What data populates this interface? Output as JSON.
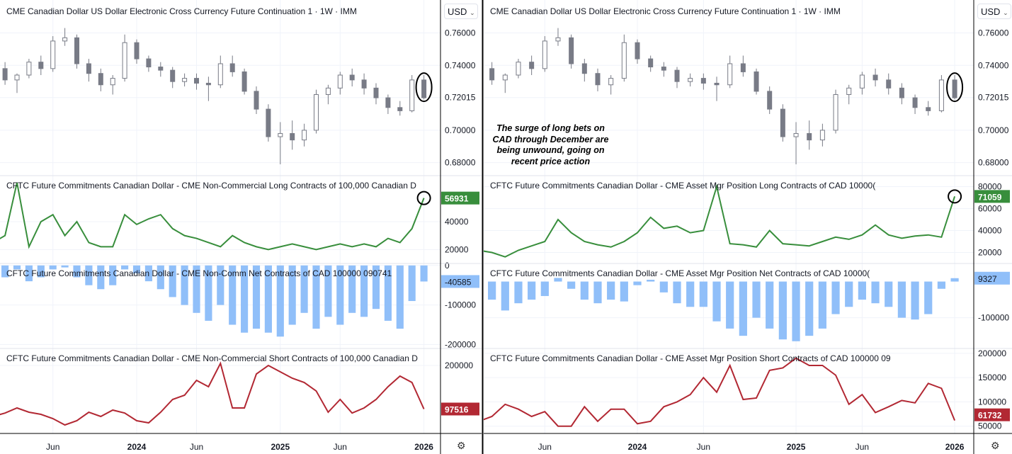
{
  "currency_selector": {
    "left": "USD",
    "right": "USD"
  },
  "annotation_text": "The surge of long bets on CAD through December are being unwound, going on recent price action",
  "colors": {
    "candle": "#787b86",
    "long_line": "#388e3c",
    "net_bar": "#90bff9",
    "short_line": "#b22833",
    "grid": "#f0f3fa",
    "divider": "#000000"
  },
  "icons": {
    "settings": "gear-icon",
    "dropdown": "chevron-down-icon"
  },
  "chart_data": [
    {
      "panel": "left",
      "time_axis": {
        "labels": [
          "Jun",
          "2024",
          "Jun",
          "2025",
          "Jun",
          "2026"
        ],
        "dates": [
          "2023-06",
          "2024-01",
          "2024-06",
          "2025-01",
          "2025-06",
          "2026-01"
        ]
      },
      "months": [
        "2023-01",
        "2023-02",
        "2023-03",
        "2023-04",
        "2023-05",
        "2023-06",
        "2023-07",
        "2023-08",
        "2023-09",
        "2023-10",
        "2023-11",
        "2023-12",
        "2024-01",
        "2024-02",
        "2024-03",
        "2024-04",
        "2024-05",
        "2024-06",
        "2024-07",
        "2024-08",
        "2024-09",
        "2024-10",
        "2024-11",
        "2024-12",
        "2025-01",
        "2025-02",
        "2025-03",
        "2025-04",
        "2025-05",
        "2025-06",
        "2025-07",
        "2025-08",
        "2025-09",
        "2025-10",
        "2025-11",
        "2025-12",
        "2026-01"
      ],
      "panes": [
        {
          "type": "candlestick",
          "title": "CME Canadian Dollar US Dollar Electronic Cross Currency Future Continuation 1 · 1W · IMM",
          "ylim": [
            0.672,
            0.765
          ],
          "ticks": [
            "0.76000",
            "0.74000",
            "0.72015",
            "0.70000",
            "0.68000"
          ],
          "tick_values": [
            0.76,
            0.74,
            0.72015,
            0.7,
            0.68
          ],
          "ohlc": [
            [
              0.741,
              0.745,
              0.735,
              0.738
            ],
            [
              0.738,
              0.742,
              0.728,
              0.731
            ],
            [
              0.731,
              0.735,
              0.723,
              0.734
            ],
            [
              0.734,
              0.744,
              0.732,
              0.742
            ],
            [
              0.742,
              0.746,
              0.734,
              0.738
            ],
            [
              0.738,
              0.758,
              0.736,
              0.755
            ],
            [
              0.755,
              0.763,
              0.752,
              0.757
            ],
            [
              0.757,
              0.759,
              0.738,
              0.741
            ],
            [
              0.741,
              0.744,
              0.73,
              0.735
            ],
            [
              0.735,
              0.738,
              0.724,
              0.728
            ],
            [
              0.728,
              0.734,
              0.722,
              0.732
            ],
            [
              0.732,
              0.759,
              0.73,
              0.754
            ],
            [
              0.754,
              0.756,
              0.741,
              0.744
            ],
            [
              0.744,
              0.746,
              0.736,
              0.739
            ],
            [
              0.739,
              0.742,
              0.733,
              0.737
            ],
            [
              0.737,
              0.739,
              0.726,
              0.73
            ],
            [
              0.73,
              0.735,
              0.727,
              0.732
            ],
            [
              0.732,
              0.735,
              0.725,
              0.729
            ],
            [
              0.729,
              0.733,
              0.718,
              0.728
            ],
            [
              0.728,
              0.746,
              0.726,
              0.741
            ],
            [
              0.741,
              0.746,
              0.733,
              0.736
            ],
            [
              0.736,
              0.738,
              0.722,
              0.724
            ],
            [
              0.724,
              0.727,
              0.71,
              0.713
            ],
            [
              0.713,
              0.716,
              0.693,
              0.696
            ],
            [
              0.696,
              0.705,
              0.679,
              0.698
            ],
            [
              0.698,
              0.706,
              0.688,
              0.694
            ],
            [
              0.694,
              0.704,
              0.69,
              0.7
            ],
            [
              0.7,
              0.725,
              0.698,
              0.722
            ],
            [
              0.722,
              0.728,
              0.716,
              0.726
            ],
            [
              0.726,
              0.736,
              0.722,
              0.734
            ],
            [
              0.734,
              0.738,
              0.727,
              0.731
            ],
            [
              0.731,
              0.735,
              0.722,
              0.726
            ],
            [
              0.726,
              0.729,
              0.716,
              0.72
            ],
            [
              0.72,
              0.722,
              0.71,
              0.714
            ],
            [
              0.714,
              0.718,
              0.709,
              0.712
            ],
            [
              0.712,
              0.734,
              0.711,
              0.731
            ],
            [
              0.731,
              0.734,
              0.719,
              0.72
            ]
          ]
        },
        {
          "type": "line",
          "title": "CFTC Future Commitments Canadian Dollar - CME Non-Commercial Long Contracts of 100,000 Canadian D",
          "last_value": "56931",
          "ylim": [
            10000,
            73000
          ],
          "ticks": [
            "40000",
            "20000"
          ],
          "tick_values": [
            40000,
            20000
          ],
          "values": [
            25000,
            30000,
            68000,
            22000,
            40000,
            45000,
            30000,
            40000,
            25000,
            22000,
            22000,
            45000,
            38000,
            42000,
            45000,
            35000,
            30000,
            28000,
            25000,
            22000,
            30000,
            25000,
            22000,
            20000,
            22000,
            24000,
            22000,
            20000,
            22000,
            24000,
            22000,
            24000,
            22000,
            28000,
            25000,
            35000,
            56931
          ]
        },
        {
          "type": "bar",
          "title": "CFTC Future Commitments Canadian Dollar - CME Non-Comm Net Contracts of CAD 100000 090741",
          "last_value": "-40585",
          "ylim": [
            -210000,
            5000
          ],
          "ticks": [
            "0",
            "-100000",
            "-200000"
          ],
          "tick_values": [
            0,
            -100000,
            -200000
          ],
          "values": [
            -20000,
            -30000,
            -10000,
            -40000,
            -30000,
            -10000,
            -5000,
            -30000,
            -50000,
            -60000,
            -50000,
            -10000,
            -20000,
            -40000,
            -60000,
            -80000,
            -100000,
            -120000,
            -140000,
            -100000,
            -150000,
            -170000,
            -160000,
            -170000,
            -180000,
            -150000,
            -120000,
            -160000,
            -130000,
            -150000,
            -120000,
            -130000,
            -110000,
            -140000,
            -160000,
            -90000,
            -40585
          ]
        },
        {
          "type": "line",
          "title": "CFTC Future Commitments Canadian Dollar - CME Non-Commercial Short Contracts of 100,000 Canadian D",
          "last_value": "97516",
          "ylim": [
            40000,
            240000
          ],
          "ticks": [
            "200000"
          ],
          "tick_values": [
            200000
          ],
          "values": [
            80000,
            88000,
            100000,
            90000,
            85000,
            75000,
            60000,
            70000,
            90000,
            80000,
            95000,
            88000,
            70000,
            65000,
            90000,
            120000,
            130000,
            165000,
            150000,
            205000,
            100000,
            100000,
            180000,
            200000,
            185000,
            170000,
            160000,
            140000,
            90000,
            120000,
            88000,
            100000,
            120000,
            150000,
            175000,
            160000,
            97516
          ]
        }
      ]
    },
    {
      "panel": "right",
      "time_axis": {
        "labels": [
          "Jun",
          "2024",
          "Jun",
          "2025",
          "Jun",
          "2026"
        ],
        "dates": [
          "2023-06",
          "2024-01",
          "2024-06",
          "2025-01",
          "2025-06",
          "2026-01"
        ]
      },
      "months": [
        "2023-01",
        "2023-02",
        "2023-03",
        "2023-04",
        "2023-05",
        "2023-06",
        "2023-07",
        "2023-08",
        "2023-09",
        "2023-10",
        "2023-11",
        "2023-12",
        "2024-01",
        "2024-02",
        "2024-03",
        "2024-04",
        "2024-05",
        "2024-06",
        "2024-07",
        "2024-08",
        "2024-09",
        "2024-10",
        "2024-11",
        "2024-12",
        "2025-01",
        "2025-02",
        "2025-03",
        "2025-04",
        "2025-05",
        "2025-06",
        "2025-07",
        "2025-08",
        "2025-09",
        "2025-10",
        "2025-11",
        "2025-12",
        "2026-01"
      ],
      "panes": [
        {
          "type": "candlestick",
          "title": "CME Canadian Dollar US Dollar Electronic Cross Currency Future Continuation 1 · 1W · IMM",
          "ylim": [
            0.672,
            0.765
          ],
          "ticks": [
            "0.76000",
            "0.74000",
            "0.72015",
            "0.70000",
            "0.68000"
          ],
          "tick_values": [
            0.76,
            0.74,
            0.72015,
            0.7,
            0.68
          ],
          "ohlc": [
            [
              0.741,
              0.745,
              0.735,
              0.738
            ],
            [
              0.738,
              0.742,
              0.728,
              0.731
            ],
            [
              0.731,
              0.735,
              0.723,
              0.734
            ],
            [
              0.734,
              0.744,
              0.732,
              0.742
            ],
            [
              0.742,
              0.746,
              0.734,
              0.738
            ],
            [
              0.738,
              0.758,
              0.736,
              0.755
            ],
            [
              0.755,
              0.763,
              0.752,
              0.757
            ],
            [
              0.757,
              0.759,
              0.738,
              0.741
            ],
            [
              0.741,
              0.744,
              0.73,
              0.735
            ],
            [
              0.735,
              0.738,
              0.724,
              0.728
            ],
            [
              0.728,
              0.734,
              0.722,
              0.732
            ],
            [
              0.732,
              0.759,
              0.73,
              0.754
            ],
            [
              0.754,
              0.756,
              0.741,
              0.744
            ],
            [
              0.744,
              0.746,
              0.736,
              0.739
            ],
            [
              0.739,
              0.742,
              0.733,
              0.737
            ],
            [
              0.737,
              0.739,
              0.726,
              0.73
            ],
            [
              0.73,
              0.735,
              0.727,
              0.732
            ],
            [
              0.732,
              0.735,
              0.725,
              0.729
            ],
            [
              0.729,
              0.733,
              0.718,
              0.728
            ],
            [
              0.728,
              0.746,
              0.726,
              0.741
            ],
            [
              0.741,
              0.746,
              0.733,
              0.736
            ],
            [
              0.736,
              0.738,
              0.722,
              0.724
            ],
            [
              0.724,
              0.727,
              0.71,
              0.713
            ],
            [
              0.713,
              0.716,
              0.693,
              0.696
            ],
            [
              0.696,
              0.705,
              0.679,
              0.698
            ],
            [
              0.698,
              0.706,
              0.688,
              0.694
            ],
            [
              0.694,
              0.704,
              0.69,
              0.7
            ],
            [
              0.7,
              0.725,
              0.698,
              0.722
            ],
            [
              0.722,
              0.728,
              0.716,
              0.726
            ],
            [
              0.726,
              0.736,
              0.722,
              0.734
            ],
            [
              0.734,
              0.738,
              0.727,
              0.731
            ],
            [
              0.731,
              0.735,
              0.722,
              0.726
            ],
            [
              0.726,
              0.729,
              0.716,
              0.72
            ],
            [
              0.72,
              0.722,
              0.71,
              0.714
            ],
            [
              0.714,
              0.718,
              0.709,
              0.712
            ],
            [
              0.712,
              0.734,
              0.711,
              0.731
            ],
            [
              0.731,
              0.734,
              0.719,
              0.72
            ]
          ]
        },
        {
          "type": "line",
          "title": "CFTC Future Commitments Canadian Dollar - CME Asset Mgr Position Long Contracts of CAD 10000(",
          "last_value": "71059",
          "ylim": [
            10000,
            90000
          ],
          "ticks": [
            "80000",
            "60000",
            "40000",
            "20000"
          ],
          "tick_values": [
            80000,
            60000,
            40000,
            20000
          ],
          "values": [
            22000,
            20000,
            16000,
            22000,
            26000,
            30000,
            50000,
            38000,
            30000,
            27000,
            25000,
            30000,
            38000,
            52000,
            42000,
            44000,
            38000,
            40000,
            80000,
            28000,
            27000,
            25000,
            40000,
            28000,
            27000,
            26000,
            30000,
            34000,
            32000,
            36000,
            45000,
            36000,
            33000,
            35000,
            36000,
            34000,
            71059
          ]
        },
        {
          "type": "bar",
          "title": "CFTC Future Commitments Canadian Dollar - CME Asset Mgr Position Net Contracts of CAD 10000(",
          "last_value": "9327",
          "ylim": [
            -185000,
            50000
          ],
          "ticks": [
            "-100000"
          ],
          "tick_values": [
            -100000
          ],
          "values": [
            -30000,
            -50000,
            -80000,
            -60000,
            -50000,
            -40000,
            10000,
            -20000,
            -50000,
            -60000,
            -50000,
            -55000,
            -10000,
            5000,
            -30000,
            -60000,
            -70000,
            -70000,
            -110000,
            -130000,
            -150000,
            -100000,
            -130000,
            -160000,
            -165000,
            -150000,
            -130000,
            -90000,
            -70000,
            -50000,
            -60000,
            -70000,
            -100000,
            -105000,
            -90000,
            -20000,
            9327
          ]
        },
        {
          "type": "line",
          "title": "CFTC Future Commitments Canadian Dollar - CME Asset Mgr Position Short Contracts of CAD 100000 09",
          "last_value": "61732",
          "ylim": [
            35000,
            210000
          ],
          "ticks": [
            "200000",
            "150000",
            "100000",
            "50000"
          ],
          "tick_values": [
            200000,
            150000,
            100000,
            50000
          ],
          "values": [
            60000,
            70000,
            95000,
            85000,
            70000,
            80000,
            50000,
            50000,
            90000,
            60000,
            85000,
            85000,
            55000,
            60000,
            90000,
            100000,
            115000,
            150000,
            120000,
            175000,
            105000,
            108000,
            165000,
            170000,
            190000,
            175000,
            175000,
            155000,
            95000,
            115000,
            78000,
            90000,
            103000,
            98000,
            138000,
            128000,
            61732
          ]
        }
      ]
    }
  ]
}
